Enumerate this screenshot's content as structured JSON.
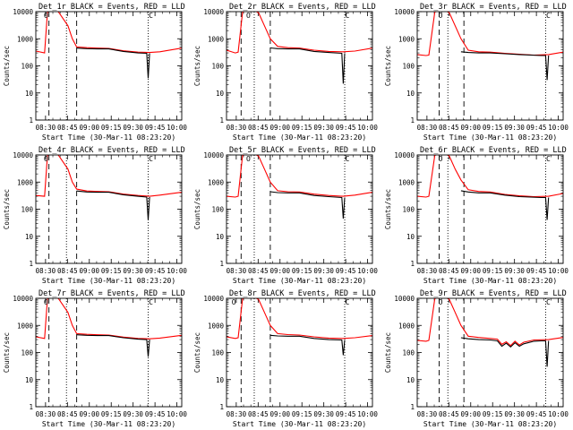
{
  "figure": {
    "layout": "3x3 grid",
    "colors": {
      "events": "#000000",
      "lld": "#ff0000",
      "axes": "#000000",
      "background": "#ffffff"
    },
    "marker_o": "O",
    "marker_c": "C"
  },
  "chart_data": [
    {
      "type": "line",
      "title": "Det_1r BLACK = Events, RED = LLD",
      "xlabel": "Start Time (30-Mar-11 08:23:20)",
      "ylabel": "Counts/sec",
      "x_ticks": [
        "08:30",
        "08:45",
        "09:00",
        "09:15",
        "09:30",
        "09:45",
        "10:00"
      ],
      "y_ticks": [
        "1",
        "10",
        "100",
        "1000",
        "10000"
      ],
      "y_scale": "log",
      "ylim": [
        1,
        10000
      ],
      "xlim_minutes": [
        0,
        100
      ],
      "vlines_dashed": [
        9,
        28
      ],
      "vlines_dotted": [
        21,
        77
      ],
      "marker_o_x": 7,
      "marker_c_x": 77,
      "series": [
        {
          "color": "red",
          "x": [
            0,
            6,
            8,
            10,
            14,
            16,
            22,
            25,
            28,
            35,
            42,
            50,
            60,
            70,
            78,
            85,
            100
          ],
          "y": [
            350,
            300,
            9500,
            12000,
            12000,
            9000,
            3000,
            1000,
            500,
            470,
            450,
            440,
            360,
            320,
            310,
            330,
            450
          ]
        },
        {
          "color": "black",
          "x": [
            28,
            35,
            42,
            50,
            60,
            70,
            76,
            77,
            78
          ],
          "y": [
            450,
            430,
            420,
            420,
            340,
            300,
            290,
            35,
            290
          ]
        }
      ]
    },
    {
      "type": "line",
      "title": "Det_2r BLACK = Events, RED = LLD",
      "xlabel": "Start Time (30-Mar-11 08:23:20)",
      "ylabel": "Counts/sec",
      "x_ticks": [
        "08:30",
        "08:45",
        "09:00",
        "09:15",
        "09:30",
        "09:45",
        "10:00"
      ],
      "y_ticks": [
        "1",
        "10",
        "100",
        "1000",
        "10000"
      ],
      "y_scale": "log",
      "ylim": [
        1,
        10000
      ],
      "xlim_minutes": [
        0,
        100
      ],
      "vlines_dashed": [
        10,
        30
      ],
      "vlines_dotted": [
        19,
        81
      ],
      "marker_o_x": 15,
      "marker_c_x": 81,
      "series": [
        {
          "color": "red",
          "x": [
            0,
            6,
            8,
            11,
            15,
            18,
            22,
            26,
            30,
            35,
            42,
            50,
            60,
            70,
            80,
            88,
            100
          ],
          "y": [
            380,
            300,
            320,
            9500,
            12000,
            12000,
            9000,
            3000,
            1000,
            520,
            470,
            450,
            380,
            340,
            330,
            350,
            450
          ]
        },
        {
          "color": "black",
          "x": [
            30,
            35,
            42,
            50,
            60,
            70,
            79,
            80,
            81
          ],
          "y": [
            460,
            430,
            420,
            420,
            340,
            310,
            290,
            22,
            290
          ]
        }
      ]
    },
    {
      "type": "line",
      "title": "Det_3r BLACK = Events, RED = LLD",
      "xlabel": "Start Time (30-Mar-11 08:23:20)",
      "ylabel": "Counts/sec",
      "x_ticks": [
        "08:30",
        "08:45",
        "09:00",
        "09:15",
        "09:30",
        "09:45",
        "10:00"
      ],
      "y_ticks": [
        "1",
        "10",
        "100",
        "1000",
        "10000"
      ],
      "y_scale": "log",
      "ylim": [
        1,
        10000
      ],
      "xlim_minutes": [
        0,
        100
      ],
      "vlines_dashed": [
        15,
        32
      ],
      "vlines_dotted": [
        21,
        88
      ],
      "marker_o_x": 16,
      "marker_c_x": 88,
      "series": [
        {
          "color": "red",
          "x": [
            0,
            6,
            8,
            12,
            15,
            19,
            22,
            26,
            30,
            35,
            42,
            50,
            60,
            70,
            80,
            90,
            100
          ],
          "y": [
            260,
            240,
            250,
            9500,
            12000,
            12000,
            9000,
            3000,
            1000,
            380,
            330,
            320,
            290,
            270,
            250,
            260,
            320
          ]
        },
        {
          "color": "black",
          "x": [
            30,
            35,
            42,
            50,
            60,
            70,
            85,
            88,
            89,
            90
          ],
          "y": [
            330,
            310,
            300,
            300,
            280,
            260,
            240,
            240,
            30,
            240
          ]
        }
      ]
    },
    {
      "type": "line",
      "title": "Det_4r BLACK = Events, RED = LLD",
      "xlabel": "Start Time (30-Mar-11 08:23:20)",
      "ylabel": "Counts/sec",
      "x_ticks": [
        "08:30",
        "08:45",
        "09:00",
        "09:15",
        "09:30",
        "09:45",
        "10:00"
      ],
      "y_ticks": [
        "1",
        "10",
        "100",
        "1000",
        "10000"
      ],
      "y_scale": "log",
      "ylim": [
        1,
        10000
      ],
      "xlim_minutes": [
        0,
        100
      ],
      "vlines_dashed": [
        9,
        28
      ],
      "vlines_dotted": [
        21,
        77
      ],
      "marker_o_x": 7,
      "marker_c_x": 77,
      "series": [
        {
          "color": "red",
          "x": [
            0,
            6,
            8,
            10,
            14,
            16,
            22,
            25,
            28,
            35,
            42,
            50,
            60,
            70,
            78,
            85,
            100
          ],
          "y": [
            320,
            300,
            9500,
            12000,
            12000,
            9000,
            3000,
            1000,
            550,
            470,
            450,
            440,
            360,
            320,
            300,
            330,
            420
          ]
        },
        {
          "color": "black",
          "x": [
            28,
            35,
            42,
            50,
            60,
            70,
            76,
            77,
            78
          ],
          "y": [
            470,
            430,
            420,
            420,
            340,
            300,
            280,
            40,
            280
          ]
        }
      ]
    },
    {
      "type": "line",
      "title": "Det_5r BLACK = Events, RED = LLD",
      "xlabel": "Start Time (30-Mar-11 08:23:20)",
      "ylabel": "Counts/sec",
      "x_ticks": [
        "08:30",
        "08:45",
        "09:00",
        "09:15",
        "09:30",
        "09:45",
        "10:00"
      ],
      "y_ticks": [
        "1",
        "10",
        "100",
        "1000",
        "10000"
      ],
      "y_scale": "log",
      "ylim": [
        1,
        10000
      ],
      "xlim_minutes": [
        0,
        100
      ],
      "vlines_dashed": [
        10,
        30
      ],
      "vlines_dotted": [
        19,
        81
      ],
      "marker_o_x": 15,
      "marker_c_x": 81,
      "series": [
        {
          "color": "red",
          "x": [
            0,
            6,
            8,
            11,
            15,
            18,
            22,
            26,
            30,
            35,
            42,
            50,
            60,
            70,
            80,
            88,
            100
          ],
          "y": [
            300,
            280,
            300,
            9500,
            12000,
            12000,
            9000,
            3000,
            1000,
            480,
            440,
            430,
            360,
            320,
            300,
            330,
            420
          ]
        },
        {
          "color": "black",
          "x": [
            30,
            35,
            42,
            50,
            60,
            70,
            79,
            80,
            81
          ],
          "y": [
            440,
            410,
            400,
            400,
            320,
            290,
            270,
            45,
            270
          ]
        }
      ]
    },
    {
      "type": "line",
      "title": "Det_6r BLACK = Events, RED = LLD",
      "xlabel": "Start Time (30-Mar-11 08:23:20)",
      "ylabel": "Counts/sec",
      "x_ticks": [
        "08:30",
        "08:45",
        "09:00",
        "09:15",
        "09:30",
        "09:45",
        "10:00"
      ],
      "y_ticks": [
        "1",
        "10",
        "100",
        "1000",
        "10000"
      ],
      "y_scale": "log",
      "ylim": [
        1,
        10000
      ],
      "xlim_minutes": [
        0,
        100
      ],
      "vlines_dashed": [
        15,
        32
      ],
      "vlines_dotted": [
        21,
        88
      ],
      "marker_o_x": 16,
      "marker_c_x": 88,
      "series": [
        {
          "color": "red",
          "x": [
            0,
            6,
            8,
            12,
            15,
            19,
            22,
            26,
            30,
            35,
            42,
            50,
            60,
            70,
            80,
            90,
            100
          ],
          "y": [
            300,
            280,
            300,
            9500,
            12000,
            12000,
            9000,
            3000,
            1200,
            520,
            450,
            430,
            350,
            310,
            290,
            300,
            380
          ]
        },
        {
          "color": "black",
          "x": [
            30,
            35,
            42,
            50,
            60,
            70,
            85,
            88,
            89,
            90
          ],
          "y": [
            480,
            430,
            400,
            400,
            330,
            290,
            270,
            270,
            40,
            270
          ]
        }
      ]
    },
    {
      "type": "line",
      "title": "Det_7r BLACK = Events, RED = LLD",
      "xlabel": "Start Time (30-Mar-11 08:23:20)",
      "ylabel": "Counts/sec",
      "x_ticks": [
        "08:30",
        "08:45",
        "09:00",
        "09:15",
        "09:30",
        "09:45",
        "10:00"
      ],
      "y_ticks": [
        "1",
        "10",
        "100",
        "1000",
        "10000"
      ],
      "y_scale": "log",
      "ylim": [
        1,
        10000
      ],
      "xlim_minutes": [
        0,
        100
      ],
      "vlines_dashed": [
        9,
        28
      ],
      "vlines_dotted": [
        21,
        77
      ],
      "marker_o_x": 7,
      "marker_c_x": 77,
      "series": [
        {
          "color": "red",
          "x": [
            0,
            6,
            8,
            10,
            14,
            16,
            22,
            25,
            28,
            35,
            42,
            50,
            60,
            70,
            78,
            85,
            100
          ],
          "y": [
            380,
            330,
            9500,
            12000,
            12000,
            9000,
            3000,
            1000,
            500,
            470,
            450,
            440,
            370,
            330,
            320,
            340,
            430
          ]
        },
        {
          "color": "black",
          "x": [
            28,
            35,
            42,
            50,
            60,
            70,
            76,
            77,
            78
          ],
          "y": [
            450,
            430,
            420,
            420,
            350,
            310,
            300,
            70,
            300
          ]
        }
      ]
    },
    {
      "type": "line",
      "title": "Det_8r BLACK = Events, RED = LLD",
      "xlabel": "Start Time (30-Mar-11 08:23:20)",
      "ylabel": "Counts/sec",
      "x_ticks": [
        "08:30",
        "08:45",
        "09:00",
        "09:15",
        "09:30",
        "09:45",
        "10:00"
      ],
      "y_ticks": [
        "1",
        "10",
        "100",
        "1000",
        "10000"
      ],
      "y_scale": "log",
      "ylim": [
        1,
        10000
      ],
      "xlim_minutes": [
        0,
        100
      ],
      "vlines_dashed": [
        10,
        30
      ],
      "vlines_dotted": [
        19,
        81
      ],
      "marker_o_x": 5,
      "marker_c_x": 81,
      "series": [
        {
          "color": "red",
          "x": [
            0,
            6,
            8,
            11,
            15,
            18,
            22,
            26,
            30,
            35,
            42,
            50,
            60,
            70,
            80,
            88,
            100
          ],
          "y": [
            380,
            330,
            350,
            9500,
            12000,
            12000,
            9000,
            3000,
            1000,
            500,
            460,
            440,
            380,
            340,
            330,
            350,
            420
          ]
        },
        {
          "color": "black",
          "x": [
            30,
            35,
            42,
            50,
            60,
            70,
            79,
            80,
            81
          ],
          "y": [
            430,
            410,
            400,
            400,
            330,
            300,
            290,
            80,
            290
          ]
        }
      ]
    },
    {
      "type": "line",
      "title": "Det_9r BLACK = Events, RED = LLD",
      "xlabel": "Start Time (30-Mar-11 08:23:20)",
      "ylabel": "Counts/sec",
      "x_ticks": [
        "08:30",
        "08:45",
        "09:00",
        "09:15",
        "09:30",
        "09:45",
        "10:00"
      ],
      "y_ticks": [
        "1",
        "10",
        "100",
        "1000",
        "10000"
      ],
      "y_scale": "log",
      "ylim": [
        1,
        10000
      ],
      "xlim_minutes": [
        0,
        100
      ],
      "vlines_dashed": [
        15,
        32
      ],
      "vlines_dotted": [
        21,
        88
      ],
      "marker_o_x": 16,
      "marker_c_x": 88,
      "series": [
        {
          "color": "red",
          "x": [
            0,
            6,
            8,
            12,
            15,
            19,
            22,
            26,
            30,
            35,
            42,
            50,
            55,
            58,
            61,
            64,
            67,
            70,
            73,
            80,
            90,
            100
          ],
          "y": [
            280,
            260,
            280,
            9500,
            12000,
            12000,
            9000,
            3000,
            1000,
            400,
            360,
            330,
            310,
            200,
            250,
            180,
            260,
            190,
            240,
            290,
            300,
            360
          ]
        },
        {
          "color": "black",
          "x": [
            30,
            35,
            42,
            50,
            55,
            58,
            61,
            64,
            67,
            70,
            73,
            80,
            85,
            88,
            89,
            90
          ],
          "y": [
            350,
            320,
            300,
            290,
            270,
            170,
            220,
            160,
            230,
            170,
            210,
            260,
            270,
            270,
            30,
            270
          ]
        }
      ]
    }
  ]
}
